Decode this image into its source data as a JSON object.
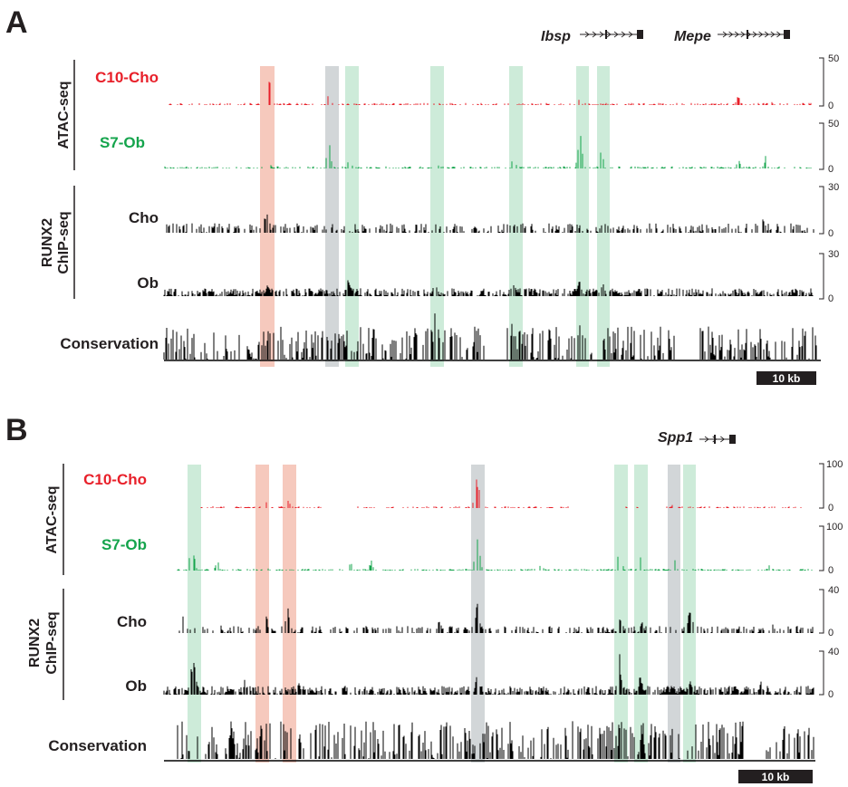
{
  "panels": [
    {
      "label": "A",
      "genes": [
        "Ibsp",
        "Mepe"
      ],
      "groups": [
        "ATAC-seq",
        "RUNX2\nChIP-seq"
      ],
      "tracks": [
        {
          "name": "C10-Cho",
          "color": "#e8202a",
          "ymax": "50",
          "ymin": "0"
        },
        {
          "name": "S7-Ob",
          "color": "#14a44c",
          "ymax": "50",
          "ymin": "0"
        },
        {
          "name": "Cho",
          "color": "#000000",
          "ymax": "30",
          "ymin": "0"
        },
        {
          "name": "Ob",
          "color": "#000000",
          "ymax": "30",
          "ymin": "0"
        }
      ],
      "conservation": "Conservation",
      "scale_bar": "10 kb"
    },
    {
      "label": "B",
      "genes": [
        "Spp1"
      ],
      "groups": [
        "ATAC-seq",
        "RUNX2\nChIP-seq"
      ],
      "tracks": [
        {
          "name": "C10-Cho",
          "color": "#e8202a",
          "ymax": "100",
          "ymin": "0"
        },
        {
          "name": "S7-Ob",
          "color": "#14a44c",
          "ymax": "100",
          "ymin": "0"
        },
        {
          "name": "Cho",
          "color": "#000000",
          "ymax": "40",
          "ymin": "0"
        },
        {
          "name": "Ob",
          "color": "#000000",
          "ymax": "40",
          "ymin": "0"
        }
      ],
      "conservation": "Conservation",
      "scale_bar": "10 kb"
    }
  ],
  "highlight_colors": {
    "red": "#f6c9bd",
    "green": "#cdebd9",
    "gray": "#d2d6d8"
  }
}
